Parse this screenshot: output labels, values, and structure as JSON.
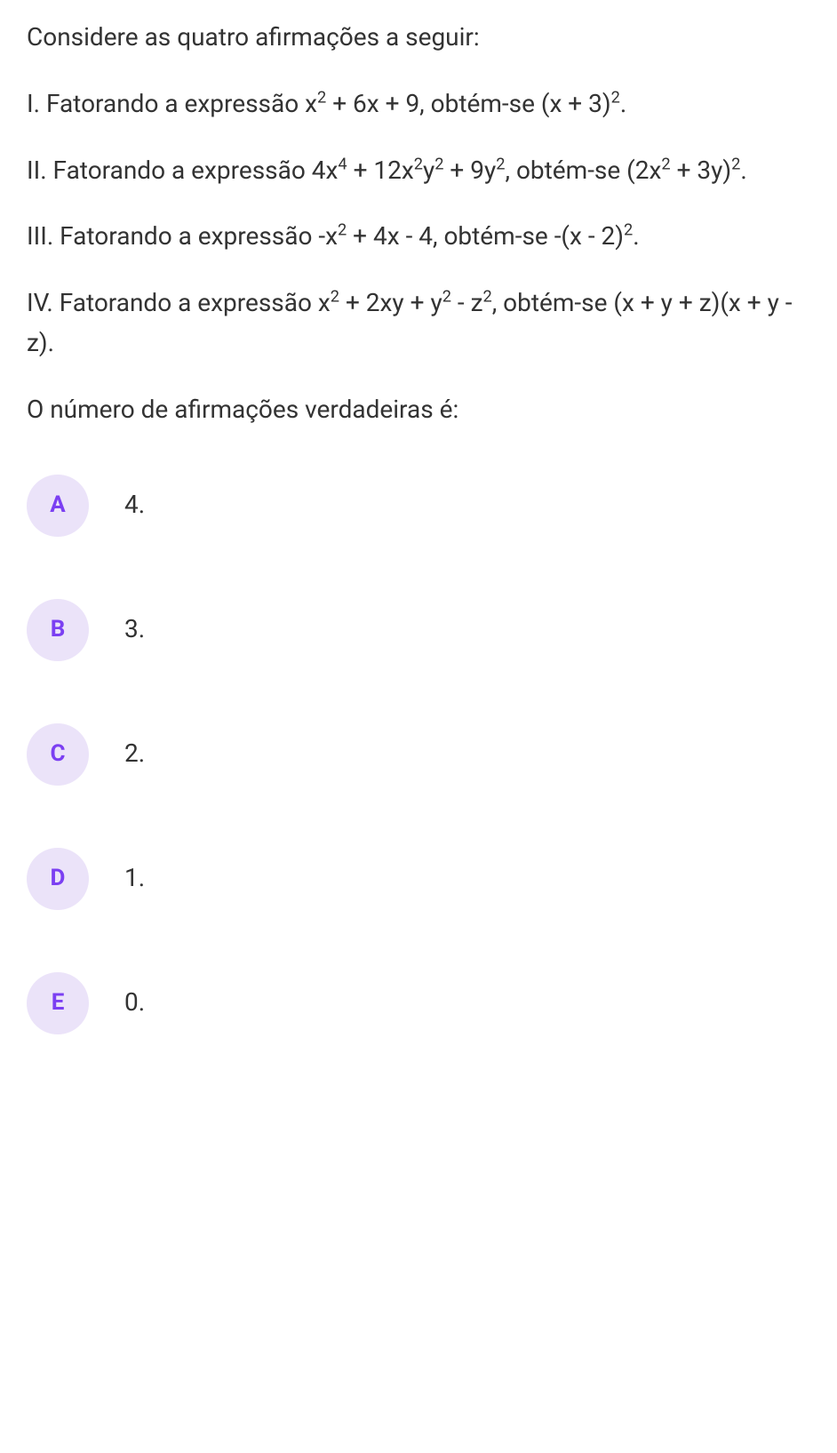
{
  "question": {
    "intro": "Considere as quatro afirmações a seguir:",
    "statements": {
      "s1_prefix": "I. Fatorando a expressão x",
      "s1_sup1": "2",
      "s1_mid1": " + 6x + 9, obtém-se (x + 3)",
      "s1_sup2": "2",
      "s1_suffix": ".",
      "s2_prefix": "II. Fatorando a expressão 4x",
      "s2_sup1": "4",
      "s2_mid1": " + 12x",
      "s2_sup2": "2",
      "s2_mid2": "y",
      "s2_sup3": "2",
      "s2_mid3": " + 9y",
      "s2_sup4": "2",
      "s2_mid4": ", obtém-se (2x",
      "s2_sup5": "2",
      "s2_mid5": " + 3y)",
      "s2_sup6": "2",
      "s2_suffix": ".",
      "s3_prefix": "III. Fatorando a expressão -x",
      "s3_sup1": "2",
      "s3_mid1": " + 4x - 4, obtém-se -(x - 2)",
      "s3_sup2": "2",
      "s3_suffix": ".",
      "s4_prefix": "IV. Fatorando a expressão x",
      "s4_sup1": "2",
      "s4_mid1": " + 2xy + y",
      "s4_sup2": "2",
      "s4_mid2": " - z",
      "s4_sup3": "2",
      "s4_suffix": ", obtém-se (x + y + z)(x + y - z)."
    },
    "prompt": "O número de afirmações verdadeiras é:"
  },
  "options": [
    {
      "letter": "A",
      "text": "4."
    },
    {
      "letter": "B",
      "text": "3."
    },
    {
      "letter": "C",
      "text": "2."
    },
    {
      "letter": "D",
      "text": "1."
    },
    {
      "letter": "E",
      "text": "0."
    }
  ],
  "colors": {
    "option_bg": "#ebe3f9",
    "option_letter": "#7b3ff2",
    "text": "#333333",
    "background": "#ffffff"
  }
}
